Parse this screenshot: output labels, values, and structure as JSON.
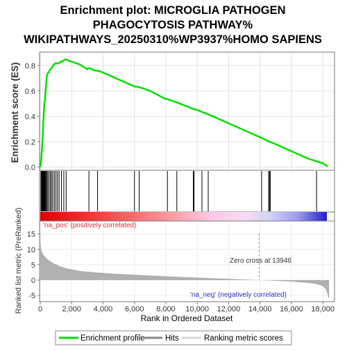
{
  "chart_data": {
    "type": "line",
    "title_lines": [
      "Enrichment plot: MICROGLIA PATHOGEN",
      "PHAGOCYTOSIS PATHWAY%",
      "WIKIPATHWAYS_20250310%WP3937%HOMO SAPIENS"
    ],
    "ylabel_top": "Enrichment score (ES)",
    "ylabel_bottom": "Ranked list metric (PreRanked)",
    "xlabel": "Rank in Ordered Dataset",
    "x_range": [
      0,
      18700
    ],
    "es_range": [
      -0.02,
      0.9
    ],
    "metric_range": [
      -6.8,
      19
    ],
    "x_ticks": [
      "0",
      "2,000",
      "4,000",
      "6,000",
      "8,000",
      "10,000",
      "12,000",
      "14,000",
      "16,000",
      "18,000"
    ],
    "x_tick_values": [
      0,
      2000,
      4000,
      6000,
      8000,
      10000,
      12000,
      14000,
      16000,
      18000
    ],
    "es_ticks": [
      "0.0",
      "0.2",
      "0.4",
      "0.6",
      "0.8"
    ],
    "es_tick_values": [
      0.0,
      0.2,
      0.4,
      0.6,
      0.8
    ],
    "metric_ticks": [
      "-5",
      "0",
      "5",
      "10",
      "15"
    ],
    "metric_tick_values": [
      -5,
      0,
      5,
      10,
      15
    ],
    "enrichment_profile": {
      "name": "Enrichment profile",
      "color": "#00e000",
      "x": [
        0,
        60,
        100,
        140,
        170,
        200,
        230,
        260,
        300,
        340,
        380,
        420,
        480,
        560,
        640,
        720,
        820,
        900,
        1000,
        1100,
        1200,
        1300,
        1400,
        1500,
        1550,
        1600,
        1700,
        1800,
        2000,
        2500,
        3000,
        3100,
        3500,
        3650,
        4000,
        5000,
        6000,
        6300,
        7000,
        8000,
        8100,
        8700,
        9000,
        9800,
        10000,
        10300,
        10700,
        11000,
        12000,
        13000,
        14000,
        14100,
        14500,
        15000,
        16000,
        17000,
        17600,
        18000,
        18300
      ],
      "y": [
        0.0,
        0.05,
        0.12,
        0.2,
        0.28,
        0.36,
        0.43,
        0.5,
        0.52,
        0.6,
        0.66,
        0.72,
        0.74,
        0.75,
        0.77,
        0.78,
        0.8,
        0.81,
        0.82,
        0.815,
        0.82,
        0.83,
        0.83,
        0.84,
        0.845,
        0.85,
        0.845,
        0.84,
        0.83,
        0.81,
        0.77,
        0.78,
        0.76,
        0.76,
        0.745,
        0.69,
        0.635,
        0.63,
        0.6,
        0.535,
        0.535,
        0.51,
        0.495,
        0.455,
        0.45,
        0.435,
        0.415,
        0.4,
        0.345,
        0.29,
        0.235,
        0.23,
        0.205,
        0.18,
        0.125,
        0.07,
        0.045,
        0.03,
        0.005
      ]
    },
    "hits": {
      "name": "Hits",
      "x": [
        40,
        80,
        120,
        150,
        180,
        210,
        240,
        270,
        300,
        330,
        360,
        420,
        480,
        560,
        640,
        720,
        800,
        900,
        1000,
        1100,
        1200,
        1350,
        1500,
        1650,
        3100,
        3650,
        6000,
        6300,
        8100,
        8700,
        9750,
        9800,
        10300,
        10700,
        14100,
        14550,
        14600,
        14650,
        17600
      ]
    },
    "ranking_metric": {
      "name": "Ranking metric scores",
      "x": [
        0,
        20,
        60,
        120,
        200,
        300,
        500,
        800,
        1200,
        1700,
        2500,
        3500,
        5000,
        7000,
        9000,
        11000,
        12500,
        13946,
        15000,
        16000,
        17000,
        17600,
        18000,
        18200,
        18300,
        18400
      ],
      "y": [
        18,
        12,
        10,
        9,
        8.3,
        7.6,
        6.6,
        5.6,
        4.6,
        3.8,
        3.0,
        2.5,
        2.0,
        1.5,
        1.0,
        0.6,
        0.3,
        0.0,
        -0.25,
        -0.5,
        -0.9,
        -1.3,
        -2.0,
        -3.0,
        -4.5,
        -6.5
      ]
    },
    "pos_label": "'na_pos' (positively correlated)",
    "neg_label": "'na_neg' (negatively correlated)",
    "zero_cross_label": "Zero cross at 13946",
    "zero_cross": 13946,
    "legend": {
      "placement": "bottom",
      "items": [
        "Enrichment profile",
        "Hits",
        "Ranking metric scores"
      ]
    },
    "colors": {
      "profile": "#00e000",
      "hits": "#000000",
      "metric_fill": "#b0b0b0",
      "pos_text": "#e03030",
      "neg_text": "#3030c8",
      "zero_line": "#9a9a9a"
    }
  }
}
